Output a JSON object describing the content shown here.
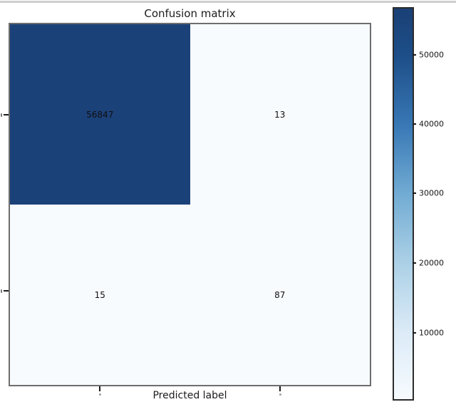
{
  "page": {
    "background_color": "#ffffff",
    "top_strip_color": "#cfcfcf"
  },
  "chart_data": {
    "type": "heatmap",
    "title": "Confusion matrix",
    "xlabel": "Predicted label",
    "ylabel": "",
    "colormap": "Blues",
    "matrix": [
      [
        56847,
        13
      ],
      [
        15,
        87
      ]
    ],
    "row_tick_labels": [
      "",
      ""
    ],
    "col_tick_labels": [
      "",
      ""
    ],
    "value_range": [
      13,
      56847
    ],
    "cell_colors": [
      [
        "#1b4179",
        "#f8fbfe"
      ],
      [
        "#f8fbfe",
        "#f8fbfe"
      ]
    ],
    "cell_text_color": "#101010",
    "axes_border_color": "#6e6e6e",
    "colorbar": {
      "position": "right",
      "tick_labels": [
        "50000",
        "40000",
        "30000",
        "20000",
        "10000"
      ],
      "gradient_top_color": "#1a4076",
      "gradient_bottom_color": "#f7fbff",
      "border_color": "#2b2b2b"
    },
    "grid": false,
    "legend": false
  }
}
